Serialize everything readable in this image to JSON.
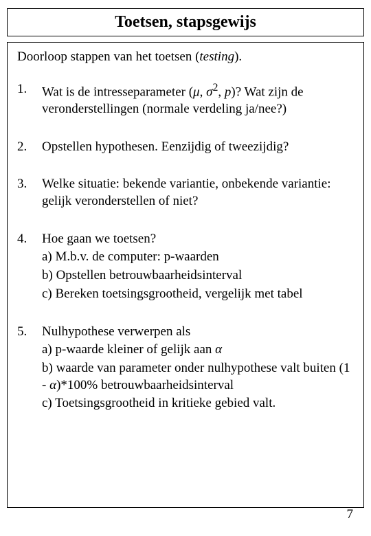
{
  "title": "Toetsen, stapsgewijs",
  "intro_a": "Doorloop stappen van het toetsen (",
  "intro_i": "testing",
  "intro_b": ").",
  "steps": {
    "s1": {
      "num": "1.",
      "text_a": "Wat is de intresseparameter (",
      "mu": "μ",
      "comma1": ", ",
      "sigma": "σ",
      "sup2": "2",
      "comma2": ", ",
      "p": "p",
      "text_b": ")? Wat zijn de veronderstellingen (normale verdeling ja/nee?)"
    },
    "s2": {
      "num": "2.",
      "text": "Opstellen hypothesen. Eenzijdig of tweezijdig?"
    },
    "s3": {
      "num": "3.",
      "text": "Welke situatie: bekende variantie, onbekende variantie: gelijk veronderstellen of niet?"
    },
    "s4": {
      "num": "4.",
      "line1": "Hoe gaan we toetsen?",
      "a": "a) M.b.v. de computer: p-waarden",
      "b": "b) Opstellen betrouwbaarheidsinterval",
      "c": "c) Bereken toetsingsgrootheid, vergelijk met tabel"
    },
    "s5": {
      "num": "5.",
      "line1_a": "Nulhypothese verwerpen als",
      "a_pre": "a) p-waarde kleiner of gelijk aan ",
      "alpha": "α",
      "b_pre": "b) waarde van parameter onder nulhypothese valt buiten (1 - ",
      "b_post": ")*100% betrouwbaarheidsinterval",
      "c": "c) Toetsingsgrootheid in kritieke gebied valt."
    }
  },
  "page_number": "7",
  "colors": {
    "text": "#000000",
    "background": "#ffffff",
    "border": "#000000"
  },
  "typography": {
    "title_fontsize": 24,
    "body_fontsize": 19,
    "font_family": "Times New Roman"
  }
}
